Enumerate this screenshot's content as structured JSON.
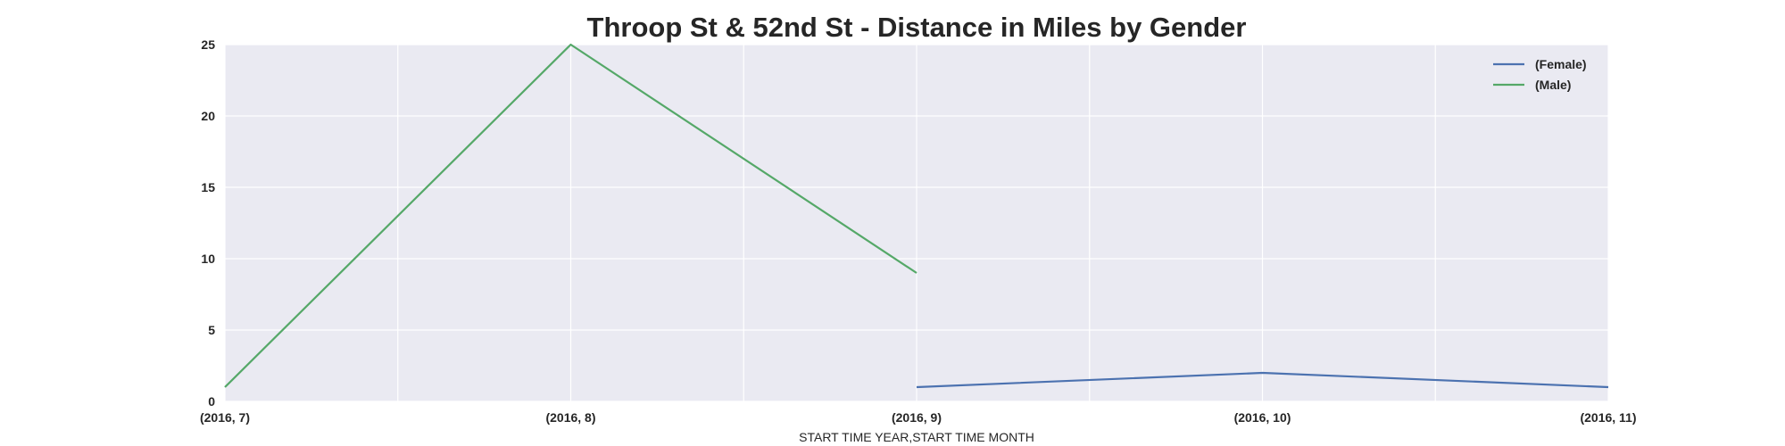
{
  "chart_data": {
    "type": "line",
    "title": "Throop St & 52nd St - Distance in Miles by Gender",
    "xlabel": "START TIME YEAR,START TIME MONTH",
    "ylabel": "",
    "categories": [
      "(2016, 7)",
      "(2016, 8)",
      "(2016, 9)",
      "(2016, 10)",
      "(2016, 11)"
    ],
    "ylim": [
      0,
      25
    ],
    "yticks": [
      0,
      5,
      10,
      15,
      20,
      25
    ],
    "grid": true,
    "legend_position": "top-right",
    "series": [
      {
        "name": "(Female)",
        "color": "#4c72b0",
        "values": [
          null,
          null,
          1,
          2,
          1
        ]
      },
      {
        "name": "(Male)",
        "color": "#55a868",
        "values": [
          1,
          25,
          9,
          null,
          null
        ]
      }
    ]
  }
}
